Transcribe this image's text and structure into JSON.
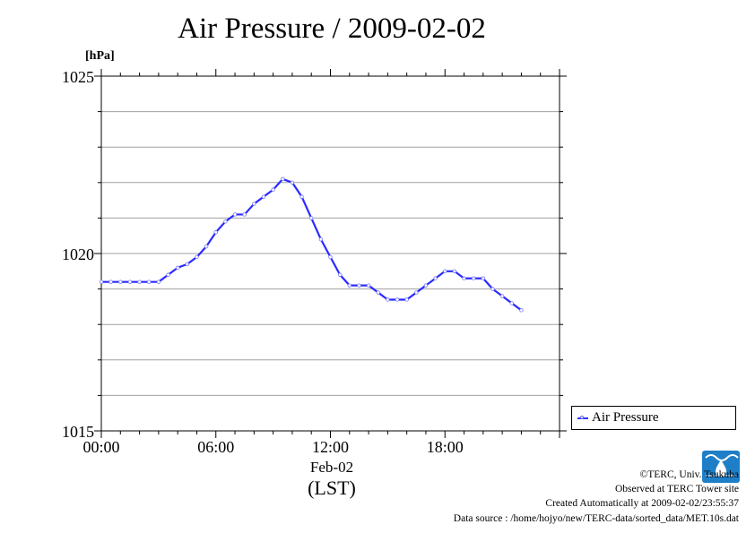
{
  "title": "Air Pressure / 2009-02-02",
  "unit": "[hPa]",
  "date_label": "Feb-02",
  "tz_label": "(LST)",
  "footer": {
    "copyright": "©TERC, Univ. Tsukuba",
    "observed": "Observed at TERC Tower site",
    "created": "Created Automatically at 2009-02-02/23:55:37",
    "source": "Data source : /home/hojyo/new/TERC-data/sorted_data/MET.10s.dat"
  },
  "logo_text": "TERC",
  "colors": {
    "series": "#2b2bff",
    "grid": "#a0a0a0",
    "logo": "#1e7fc8"
  },
  "chart_data": {
    "type": "line",
    "title": "Air Pressure / 2009-02-02",
    "ylabel": "[hPa]",
    "xlabel": "Feb-02 (LST)",
    "xlim": [
      0,
      24
    ],
    "ylim": [
      1015,
      1025
    ],
    "x_ticks": [
      0,
      6,
      12,
      18
    ],
    "x_tick_labels": [
      "00:00",
      "06:00",
      "12:00",
      "18:00"
    ],
    "y_ticks": [
      1015,
      1020,
      1025
    ],
    "y_tick_labels": [
      "1015",
      "1020",
      "1025"
    ],
    "grid": true,
    "legend": "bottom-right outside",
    "series": [
      {
        "name": "Air Pressure",
        "x": [
          0.0,
          0.5,
          1.0,
          1.5,
          2.0,
          2.5,
          3.0,
          3.5,
          4.0,
          4.5,
          5.0,
          5.5,
          6.0,
          6.5,
          7.0,
          7.5,
          8.0,
          8.5,
          9.0,
          9.5,
          10.0,
          10.5,
          11.0,
          11.5,
          12.0,
          12.5,
          13.0,
          13.5,
          14.0,
          14.5,
          15.0,
          15.5,
          16.0,
          16.5,
          17.0,
          17.5,
          18.0,
          18.5,
          19.0,
          19.5,
          20.0,
          20.5,
          21.0,
          21.5,
          22.0
        ],
        "y": [
          1019.2,
          1019.2,
          1019.2,
          1019.2,
          1019.2,
          1019.2,
          1019.2,
          1019.4,
          1019.6,
          1019.7,
          1019.9,
          1020.2,
          1020.6,
          1020.9,
          1021.1,
          1021.1,
          1021.4,
          1021.6,
          1021.8,
          1022.1,
          1022.0,
          1021.6,
          1021.0,
          1020.4,
          1019.9,
          1019.4,
          1019.1,
          1019.1,
          1019.1,
          1018.9,
          1018.7,
          1018.7,
          1018.7,
          1018.9,
          1019.1,
          1019.3,
          1019.5,
          1019.5,
          1019.3,
          1019.3,
          1019.3,
          1019.0,
          1018.8,
          1018.6,
          1018.4
        ]
      }
    ]
  }
}
